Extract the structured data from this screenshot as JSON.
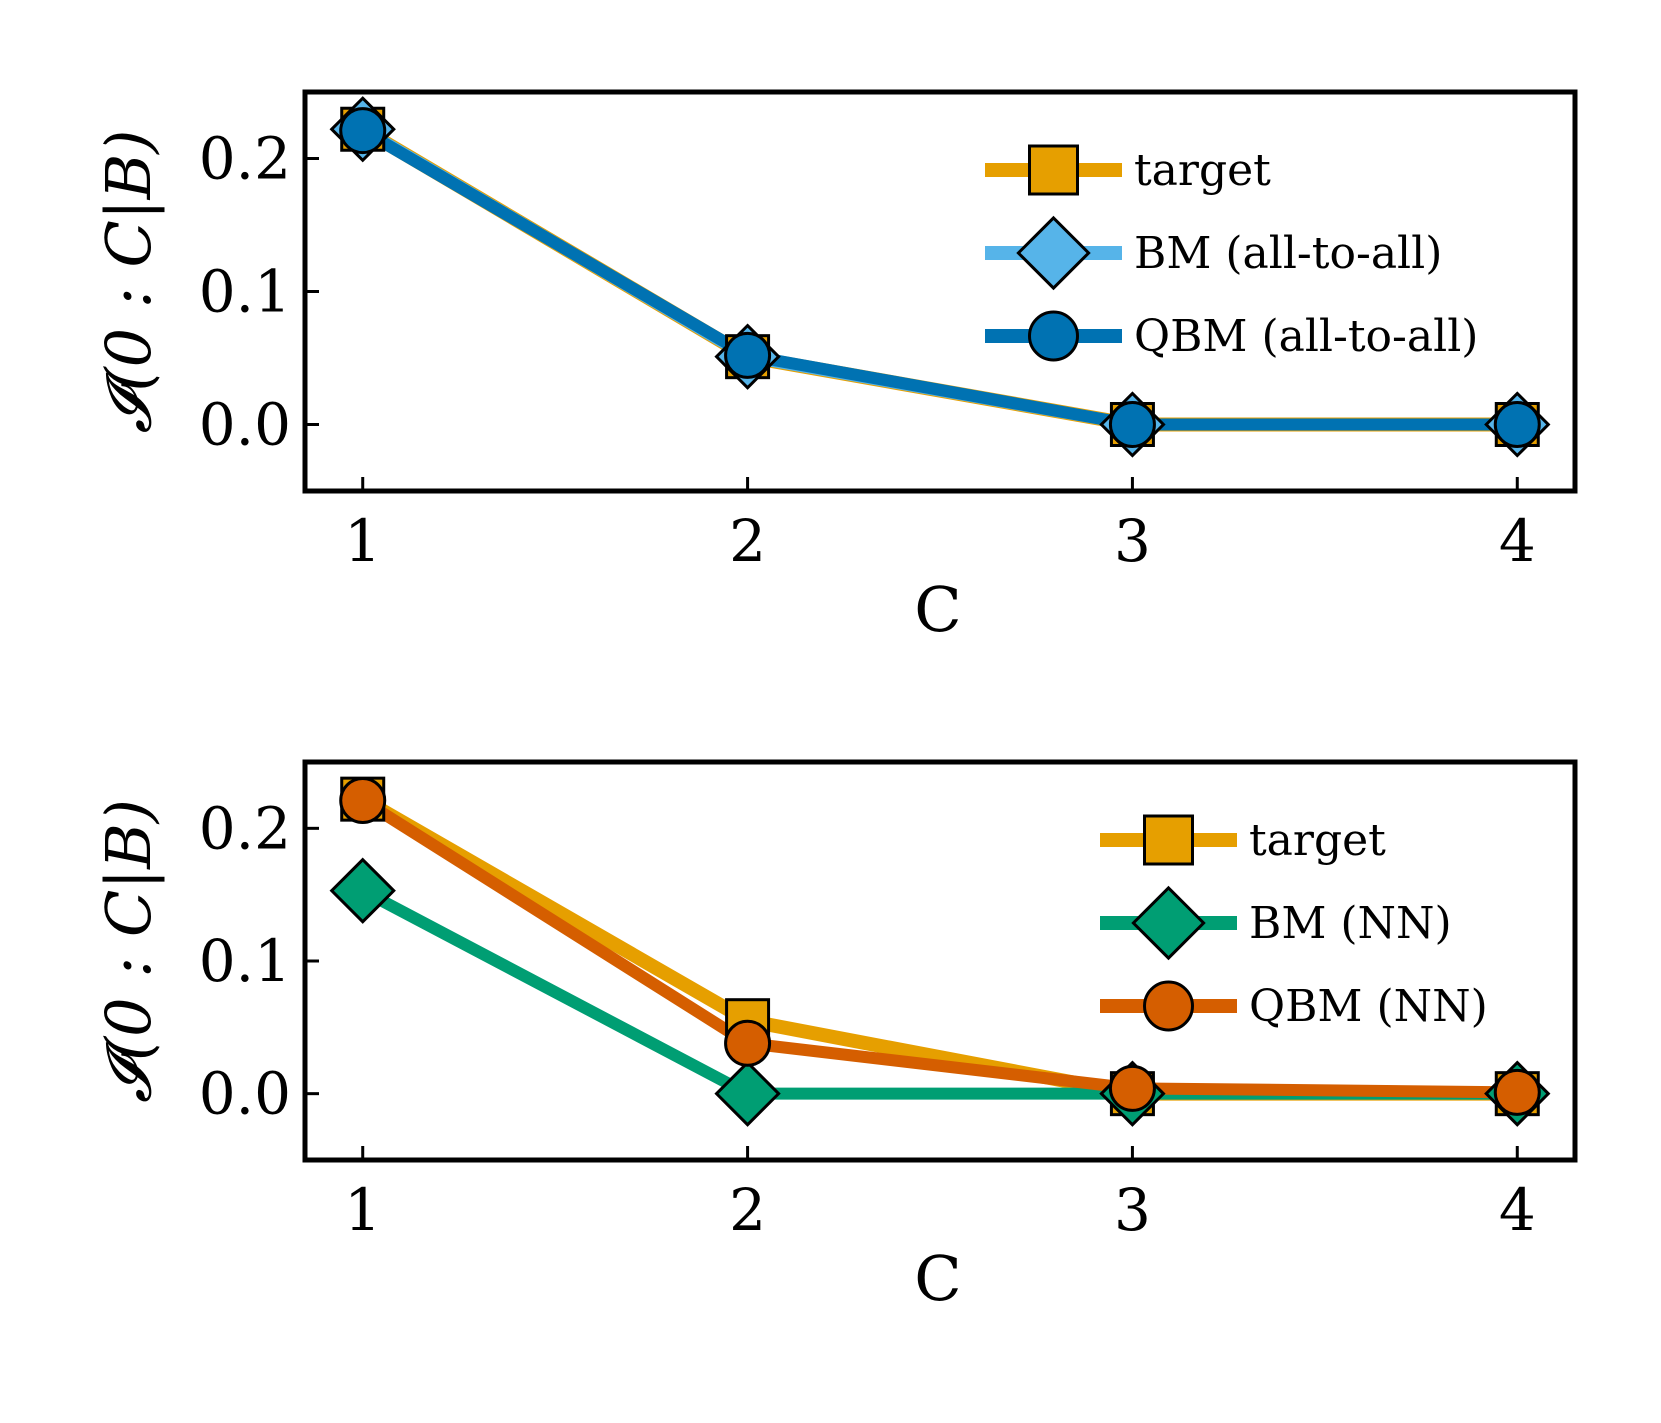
{
  "chart_data": [
    {
      "type": "line",
      "x": [
        1,
        2,
        3,
        4
      ],
      "xlabel": "C",
      "ylabel": "𝓘(0 : C|B)",
      "xlim": [
        0.85,
        4.15
      ],
      "ylim": [
        -0.05,
        0.25
      ],
      "yticks": [
        "0.0",
        "0.1",
        "0.2"
      ],
      "xticks": [
        "1",
        "2",
        "3",
        "4"
      ],
      "legend_position": "top-right",
      "series": [
        {
          "name": "target",
          "values": [
            0.222,
            0.051,
            0.0,
            0.0
          ],
          "color": "#E69F00",
          "marker": "square"
        },
        {
          "name": "BM (all-to-all)",
          "values": [
            0.222,
            0.051,
            0.0,
            0.0
          ],
          "color": "#56B4E9",
          "marker": "diamond"
        },
        {
          "name": "QBM (all-to-all)",
          "values": [
            0.221,
            0.052,
            0.0,
            0.0
          ],
          "color": "#0072B2",
          "marker": "circle"
        }
      ]
    },
    {
      "type": "line",
      "x": [
        1,
        2,
        3,
        4
      ],
      "xlabel": "C",
      "ylabel": "𝓘(0 : C|B)",
      "xlim": [
        0.85,
        4.15
      ],
      "ylim": [
        -0.05,
        0.25
      ],
      "yticks": [
        "0.0",
        "0.1",
        "0.2"
      ],
      "xticks": [
        "1",
        "2",
        "3",
        "4"
      ],
      "legend_position": "top-right",
      "series": [
        {
          "name": "target",
          "values": [
            0.222,
            0.055,
            0.0,
            0.0
          ],
          "color": "#E69F00",
          "marker": "square"
        },
        {
          "name": "BM (NN)",
          "values": [
            0.153,
            0.0,
            0.0,
            0.0
          ],
          "color": "#009E73",
          "marker": "diamond"
        },
        {
          "name": "QBM (NN)",
          "values": [
            0.221,
            0.038,
            0.004,
            0.001
          ],
          "color": "#D55E00",
          "marker": "circle"
        }
      ]
    }
  ]
}
